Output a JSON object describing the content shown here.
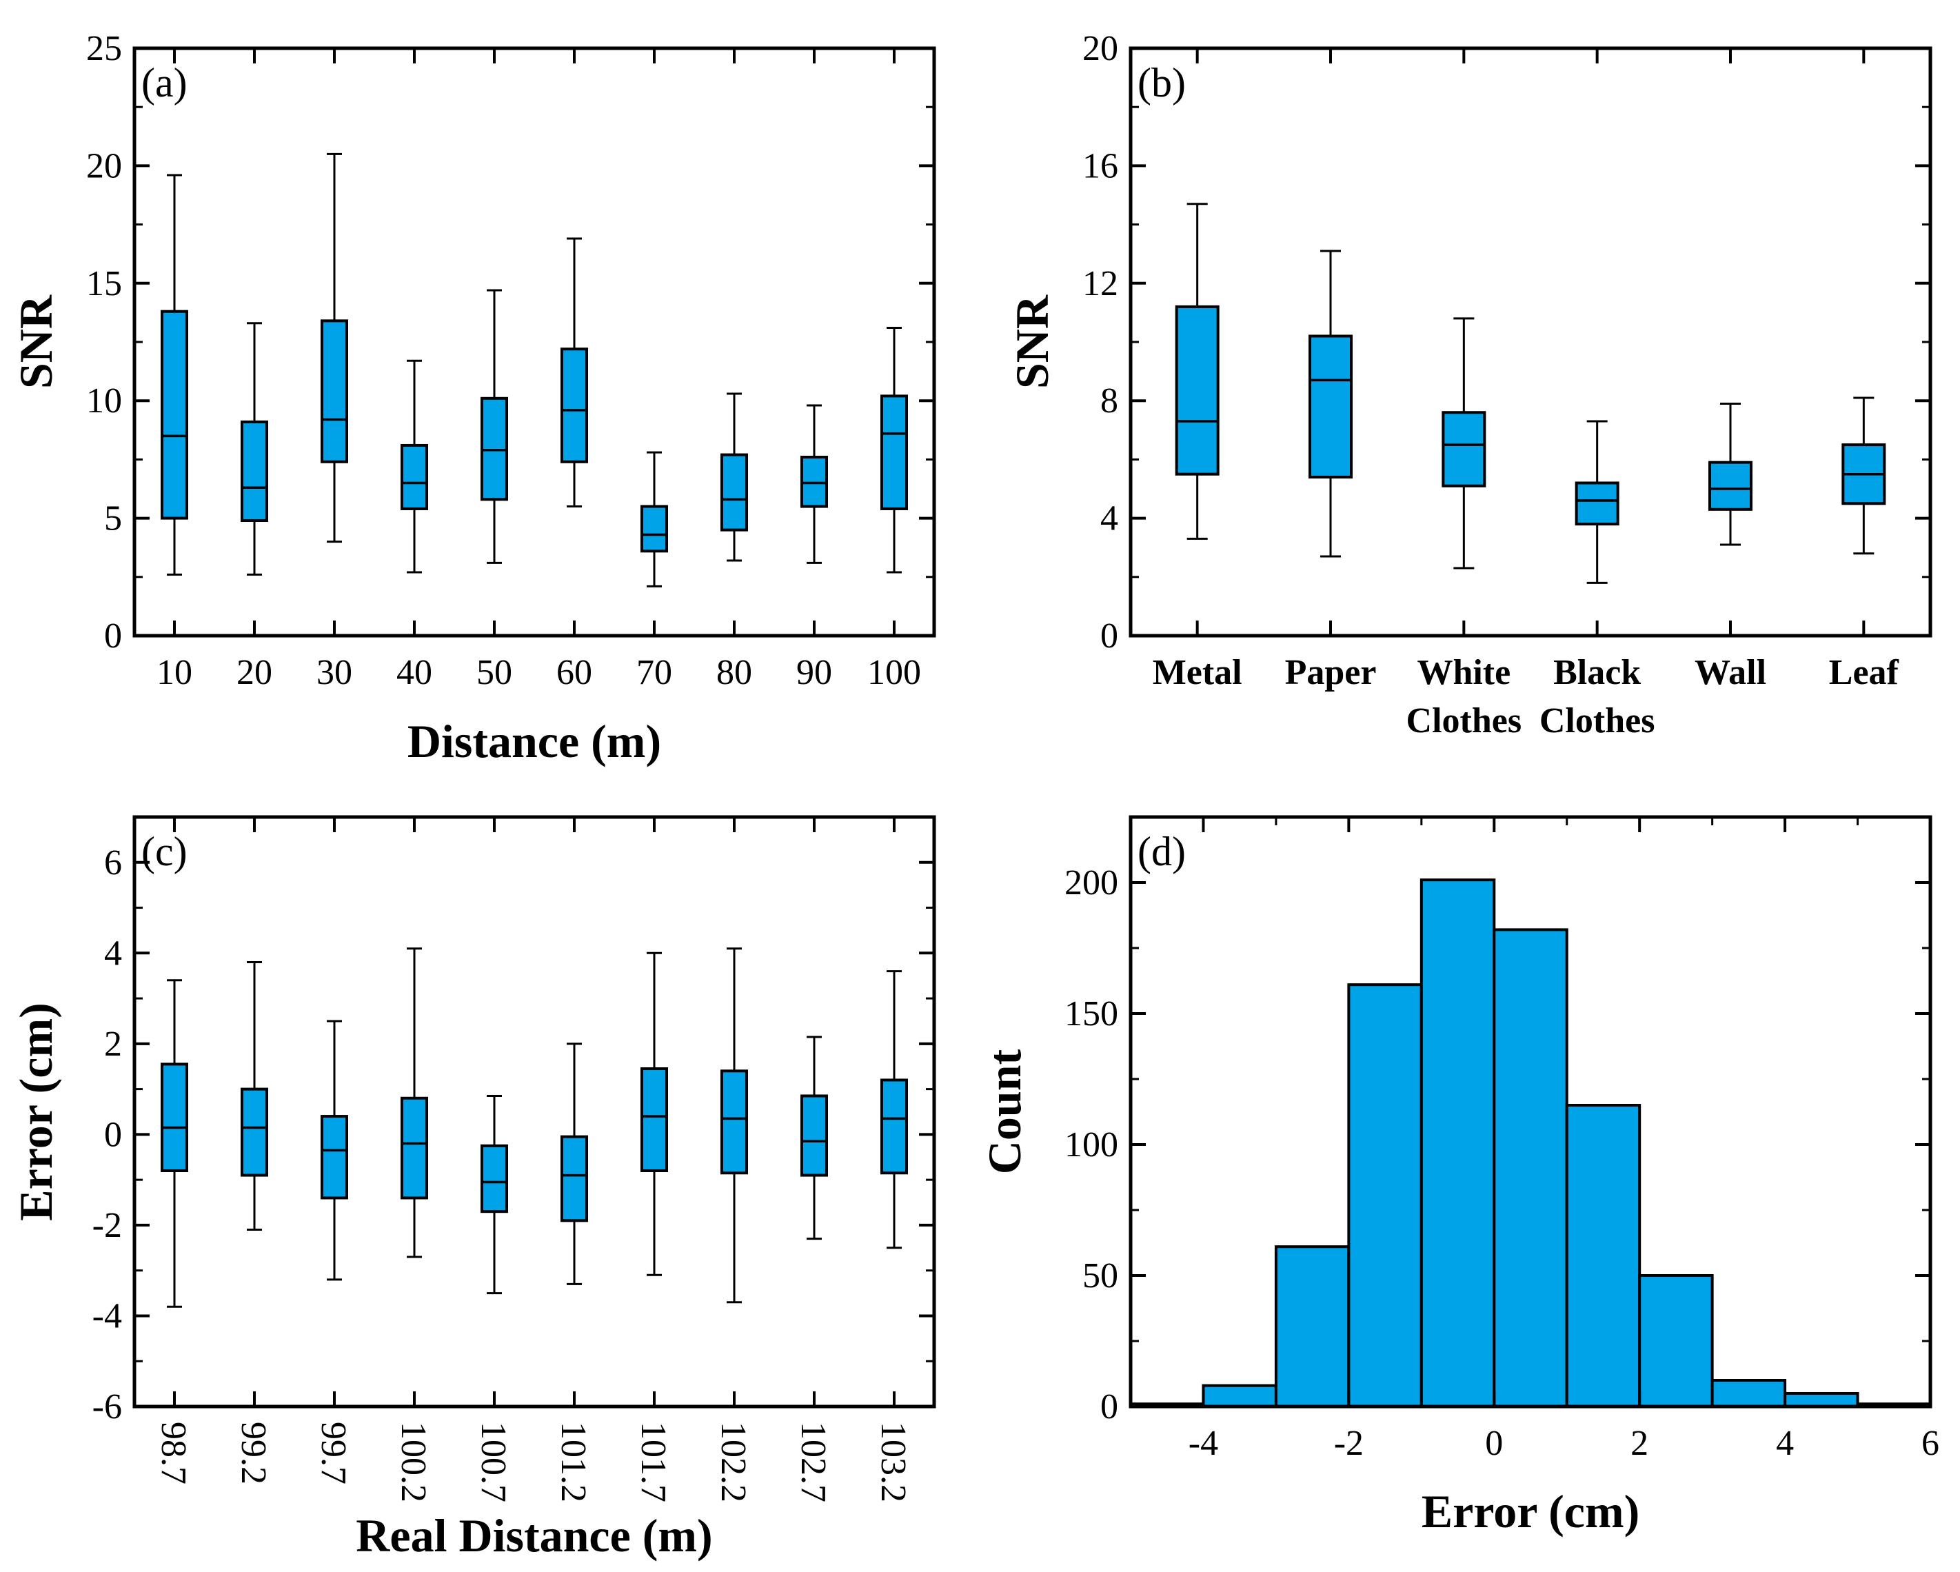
{
  "colors": {
    "box_fill": "#00A2E8",
    "stroke": "#000000",
    "background": "#FFFFFF"
  },
  "chart_data": [
    {
      "id": "a",
      "type": "box",
      "panel_label": "(a)",
      "title": "",
      "xlabel": "Distance (m)",
      "ylabel": "SNR",
      "ylim": [
        0,
        25
      ],
      "yticks": [
        "0",
        "5",
        "10",
        "15",
        "20",
        "25"
      ],
      "yticks_values": [
        0,
        5,
        10,
        15,
        20,
        25
      ],
      "categories": [
        "10",
        "20",
        "30",
        "40",
        "50",
        "60",
        "70",
        "80",
        "90",
        "100"
      ],
      "boxes": [
        {
          "min": 2.6,
          "q1": 5.0,
          "median": 8.5,
          "q3": 13.8,
          "max": 19.6
        },
        {
          "min": 2.6,
          "q1": 4.9,
          "median": 6.3,
          "q3": 9.1,
          "max": 13.3
        },
        {
          "min": 4.0,
          "q1": 7.4,
          "median": 9.2,
          "q3": 13.4,
          "max": 20.5
        },
        {
          "min": 2.7,
          "q1": 5.4,
          "median": 6.5,
          "q3": 8.1,
          "max": 11.7
        },
        {
          "min": 3.1,
          "q1": 5.8,
          "median": 7.9,
          "q3": 10.1,
          "max": 14.7
        },
        {
          "min": 5.5,
          "q1": 7.4,
          "median": 9.6,
          "q3": 12.2,
          "max": 16.9
        },
        {
          "min": 2.1,
          "q1": 3.6,
          "median": 4.3,
          "q3": 5.5,
          "max": 7.8
        },
        {
          "min": 3.2,
          "q1": 4.5,
          "median": 5.8,
          "q3": 7.7,
          "max": 10.3
        },
        {
          "min": 3.1,
          "q1": 5.5,
          "median": 6.5,
          "q3": 7.6,
          "max": 9.8
        },
        {
          "min": 2.7,
          "q1": 5.4,
          "median": 8.6,
          "q3": 10.2,
          "max": 13.1
        }
      ]
    },
    {
      "id": "b",
      "type": "box",
      "panel_label": "(b)",
      "title": "",
      "xlabel": "",
      "ylabel": "SNR",
      "ylim": [
        0,
        20
      ],
      "yticks": [
        "0",
        "4",
        "8",
        "12",
        "16",
        "20"
      ],
      "yticks_values": [
        0,
        4,
        8,
        12,
        16,
        20
      ],
      "categories": [
        "Metal",
        "Paper",
        "White\nClothes",
        "Black\nClothes",
        "Wall",
        "Leaf"
      ],
      "category_lines": [
        [
          "Metal"
        ],
        [
          "Paper"
        ],
        [
          "White",
          "Clothes"
        ],
        [
          "Black",
          "Clothes"
        ],
        [
          "Wall"
        ],
        [
          "Leaf"
        ]
      ],
      "boxes": [
        {
          "min": 3.3,
          "q1": 5.5,
          "median": 7.3,
          "q3": 11.2,
          "max": 14.7
        },
        {
          "min": 2.7,
          "q1": 5.4,
          "median": 8.7,
          "q3": 10.2,
          "max": 13.1
        },
        {
          "min": 2.3,
          "q1": 5.1,
          "median": 6.5,
          "q3": 7.6,
          "max": 10.8
        },
        {
          "min": 1.8,
          "q1": 3.8,
          "median": 4.6,
          "q3": 5.2,
          "max": 7.3
        },
        {
          "min": 3.1,
          "q1": 4.3,
          "median": 5.0,
          "q3": 5.9,
          "max": 7.9
        },
        {
          "min": 2.8,
          "q1": 4.5,
          "median": 5.5,
          "q3": 6.5,
          "max": 8.1
        }
      ]
    },
    {
      "id": "c",
      "type": "box",
      "panel_label": "(c)",
      "title": "",
      "xlabel": "Real Distance (m)",
      "ylabel": "Error (cm)",
      "ylim": [
        -6,
        7
      ],
      "yticks": [
        "-6",
        "-4",
        "-2",
        "0",
        "2",
        "4",
        "6"
      ],
      "yticks_values": [
        -6,
        -4,
        -2,
        0,
        2,
        4,
        6
      ],
      "categories": [
        "98.7",
        "99.2",
        "99.7",
        "100.2",
        "100.7",
        "101.2",
        "101.7",
        "102.2",
        "102.7",
        "103.2"
      ],
      "boxes": [
        {
          "min": -3.8,
          "q1": -0.8,
          "median": 0.15,
          "q3": 1.55,
          "max": 3.4
        },
        {
          "min": -2.1,
          "q1": -0.9,
          "median": 0.15,
          "q3": 1.0,
          "max": 3.8
        },
        {
          "min": -3.2,
          "q1": -1.4,
          "median": -0.35,
          "q3": 0.4,
          "max": 2.5
        },
        {
          "min": -2.7,
          "q1": -1.4,
          "median": -0.2,
          "q3": 0.8,
          "max": 4.1
        },
        {
          "min": -3.5,
          "q1": -1.7,
          "median": -1.05,
          "q3": -0.25,
          "max": 0.85
        },
        {
          "min": -3.3,
          "q1": -1.9,
          "median": -0.9,
          "q3": -0.05,
          "max": 2.0
        },
        {
          "min": -3.1,
          "q1": -0.8,
          "median": 0.4,
          "q3": 1.45,
          "max": 4.0
        },
        {
          "min": -3.7,
          "q1": -0.85,
          "median": 0.35,
          "q3": 1.4,
          "max": 4.1
        },
        {
          "min": -2.3,
          "q1": -0.9,
          "median": -0.15,
          "q3": 0.85,
          "max": 2.15
        },
        {
          "min": -2.5,
          "q1": -0.85,
          "median": 0.35,
          "q3": 1.2,
          "max": 3.6
        }
      ]
    },
    {
      "id": "d",
      "type": "histogram",
      "panel_label": "(d)",
      "title": "",
      "xlabel": "Error (cm)",
      "ylabel": "Count",
      "xlim": [
        -5,
        6
      ],
      "ylim": [
        0,
        225
      ],
      "xticks": [
        "-4",
        "-2",
        "0",
        "2",
        "4",
        "6"
      ],
      "xticks_values": [
        -4,
        -2,
        0,
        2,
        4,
        6
      ],
      "yticks": [
        "0",
        "50",
        "100",
        "150",
        "200"
      ],
      "yticks_values": [
        0,
        50,
        100,
        150,
        200
      ],
      "bins": [
        {
          "x0": -5,
          "x1": -4,
          "count": 1
        },
        {
          "x0": -4,
          "x1": -3,
          "count": 8
        },
        {
          "x0": -3,
          "x1": -2,
          "count": 61
        },
        {
          "x0": -2,
          "x1": -1,
          "count": 161
        },
        {
          "x0": -1,
          "x1": 0,
          "count": 201
        },
        {
          "x0": 0,
          "x1": 1,
          "count": 182
        },
        {
          "x0": 1,
          "x1": 2,
          "count": 115
        },
        {
          "x0": 2,
          "x1": 3,
          "count": 50
        },
        {
          "x0": 3,
          "x1": 4,
          "count": 10
        },
        {
          "x0": 4,
          "x1": 5,
          "count": 5
        },
        {
          "x0": 5,
          "x1": 6,
          "count": 1
        }
      ]
    }
  ]
}
